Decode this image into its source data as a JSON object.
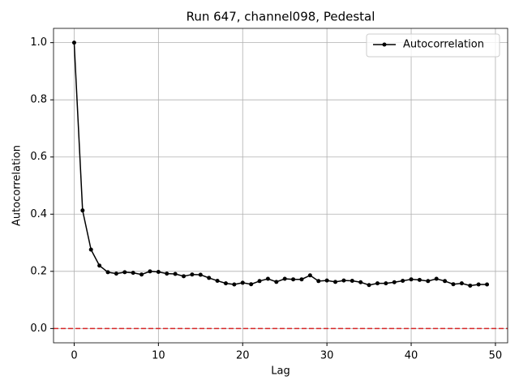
{
  "chart_data": {
    "type": "line",
    "title": "Run 647, channel098, Pedestal",
    "xlabel": "Lag",
    "ylabel": "Autocorrelation",
    "x": [
      0,
      1,
      2,
      3,
      4,
      5,
      6,
      7,
      8,
      9,
      10,
      11,
      12,
      13,
      14,
      15,
      16,
      17,
      18,
      19,
      20,
      21,
      22,
      23,
      24,
      25,
      26,
      27,
      28,
      29,
      30,
      31,
      32,
      33,
      34,
      35,
      36,
      37,
      38,
      39,
      40,
      41,
      42,
      43,
      44,
      45,
      46,
      47,
      48,
      49
    ],
    "series": [
      {
        "name": "Autocorrelation",
        "color": "#000000",
        "values": [
          1.0,
          0.413,
          0.276,
          0.22,
          0.197,
          0.192,
          0.197,
          0.195,
          0.189,
          0.2,
          0.198,
          0.192,
          0.191,
          0.183,
          0.189,
          0.188,
          0.177,
          0.167,
          0.158,
          0.154,
          0.16,
          0.155,
          0.166,
          0.174,
          0.163,
          0.174,
          0.172,
          0.172,
          0.186,
          0.166,
          0.168,
          0.163,
          0.168,
          0.167,
          0.162,
          0.152,
          0.158,
          0.158,
          0.162,
          0.167,
          0.172,
          0.17,
          0.166,
          0.174,
          0.166,
          0.155,
          0.158,
          0.15,
          0.154,
          0.154
        ]
      }
    ],
    "hline": {
      "value": 0,
      "color": "#d62728"
    },
    "xlim": [
      -2.45,
      51.45
    ],
    "xticks": [
      0,
      10,
      20,
      30,
      40,
      50
    ],
    "ylim": [
      -0.05,
      1.05
    ],
    "yticks": [
      {
        "value": 0,
        "label": "0.0"
      },
      0.2,
      0.4,
      0.6,
      0.8,
      {
        "value": 1,
        "label": "1.0"
      }
    ],
    "grid": true,
    "legend": "upper right"
  }
}
